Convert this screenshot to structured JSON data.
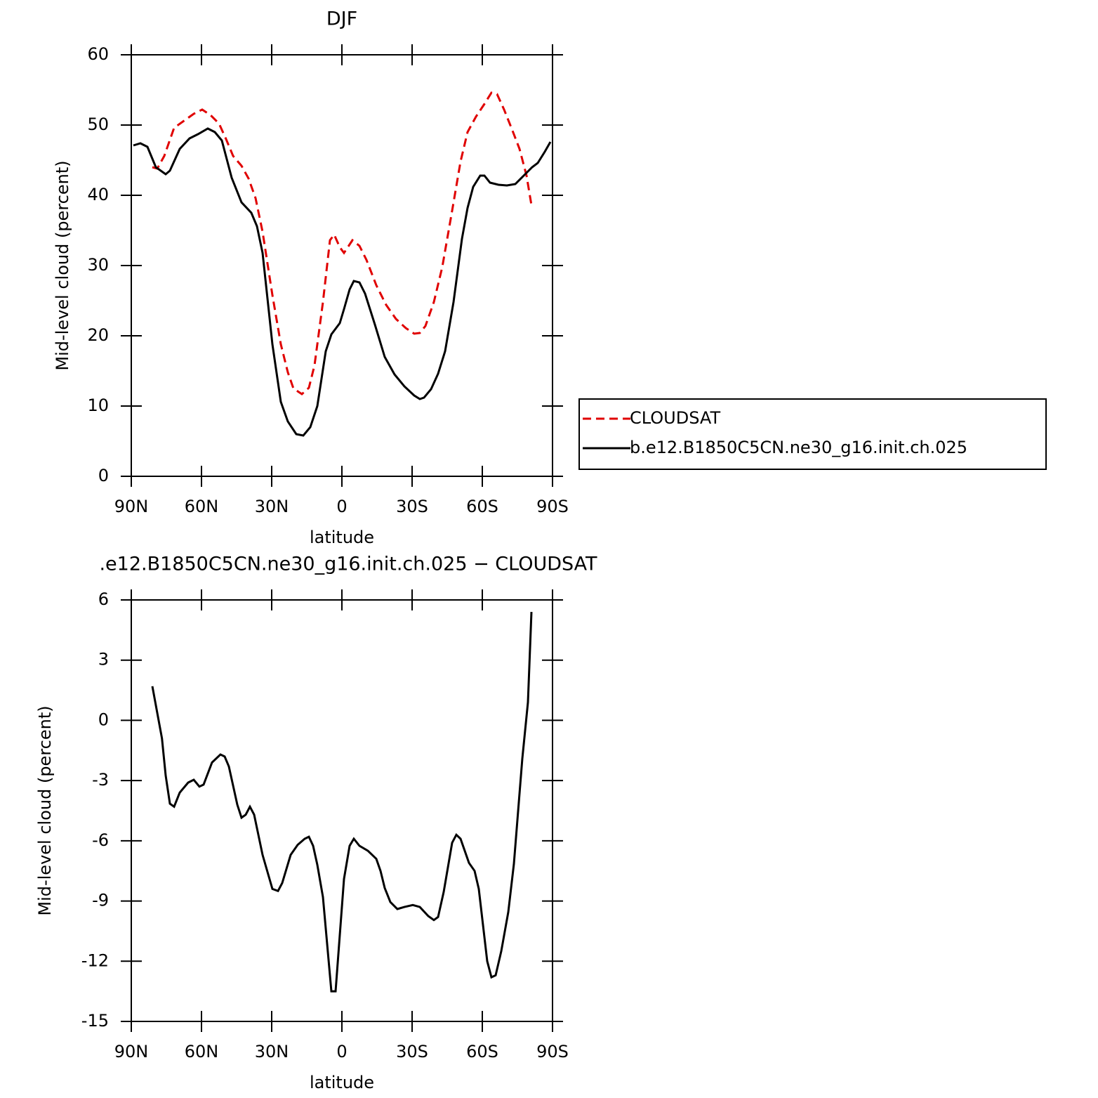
{
  "chart_data": [
    {
      "type": "line",
      "title": "DJF",
      "xlabel": "latitude",
      "ylabel": "Mid-level cloud (percent)",
      "xlim": [
        90,
        -90
      ],
      "xticks": [
        {
          "value": 90,
          "label": "90N"
        },
        {
          "value": 60,
          "label": "60N"
        },
        {
          "value": 30,
          "label": "30N"
        },
        0,
        {
          "value": -30,
          "label": "30S"
        },
        {
          "value": -60,
          "label": "60S"
        },
        {
          "value": -90,
          "label": "90S"
        }
      ],
      "ylim": [
        0,
        60
      ],
      "yticks": [
        0,
        10,
        20,
        30,
        40,
        50,
        60
      ],
      "legend": "right",
      "series": [
        {
          "name": "CLOUDSAT",
          "color": "#e00000",
          "dashed": true,
          "x": [
            81,
            78.9,
            75.9,
            71.7,
            67.5,
            63.3,
            59.7,
            56.1,
            52.5,
            49.5,
            46.5,
            42.9,
            39.9,
            36.9,
            33.9,
            29.7,
            26.1,
            23.1,
            20.7,
            17.1,
            14.1,
            11.7,
            8.1,
            5.1,
            3.3,
            0.9,
            -0.9,
            -4.5,
            -7.5,
            -10.5,
            -14.7,
            -18.9,
            -23.1,
            -27.3,
            -30.9,
            -33.3,
            -35.7,
            -39.3,
            -42.9,
            -47.1,
            -50.7,
            -53.7,
            -57.3,
            -60.9,
            -63.9,
            -66.3,
            -69.3,
            -72.9,
            -75.9,
            -78.9,
            -81
          ],
          "values": [
            44,
            43.8,
            45.6,
            49.6,
            50.6,
            51.6,
            52.2,
            51.4,
            50.2,
            48,
            45.6,
            44.2,
            42.4,
            39.6,
            34.8,
            25.8,
            18.8,
            14.8,
            12.5,
            11.7,
            12.6,
            15.8,
            24.8,
            33.6,
            34.4,
            32.6,
            31.8,
            33.6,
            32.8,
            30.8,
            27.2,
            24.4,
            22.4,
            21.1,
            20.3,
            20.4,
            21.4,
            24.8,
            29.8,
            37.8,
            44.8,
            49,
            51.2,
            53,
            54.6,
            54.4,
            52.2,
            49.2,
            46.6,
            42.8,
            38.6
          ]
        },
        {
          "name": "b.e12.B1850C5CN.ne30_g16.init.ch.025",
          "color": "#000000",
          "dashed": false,
          "x": [
            89.1,
            86.1,
            83.1,
            79.5,
            75.3,
            73.5,
            69.3,
            65.1,
            61.5,
            57.3,
            54.3,
            51.3,
            47.1,
            42.9,
            38.7,
            36.3,
            33.9,
            29.7,
            26.1,
            23.1,
            19.5,
            16.5,
            13.5,
            10.5,
            6.9,
            4.5,
            0.9,
            -0.9,
            -3.3,
            -5.1,
            -7.5,
            -9.9,
            -14.1,
            -18.3,
            -22.5,
            -26.7,
            -30.9,
            -33.3,
            -35.1,
            -38.1,
            -41.1,
            -44.1,
            -47.7,
            -51.3,
            -53.7,
            -56.1,
            -59.1,
            -60.9,
            -63.3,
            -66.9,
            -70.5,
            -74.1,
            -77.7,
            -81.3,
            -83.7,
            -86.7,
            -89.1
          ],
          "values": [
            47.1,
            47.4,
            46.9,
            44,
            43,
            43.5,
            46.6,
            48.1,
            48.7,
            49.5,
            49,
            47.8,
            42.5,
            39,
            37.5,
            35.6,
            31.8,
            18.8,
            10.6,
            7.8,
            6,
            5.8,
            7,
            10,
            17.8,
            20.2,
            21.8,
            23.8,
            26.6,
            27.8,
            27.6,
            26,
            21.6,
            17,
            14.5,
            12.8,
            11.5,
            11,
            11.2,
            12.4,
            14.6,
            17.8,
            24.8,
            33.8,
            38.2,
            41.2,
            42.8,
            42.8,
            41.8,
            41.5,
            41.4,
            41.6,
            42.8,
            44,
            44.6,
            46.2,
            47.6
          ]
        }
      ]
    },
    {
      "type": "line",
      "title": ".e12.B1850C5CN.ne30_g16.init.ch.025 − CLOUDSAT",
      "xlabel": "latitude",
      "ylabel": "Mid-level cloud (percent)",
      "xlim": [
        90,
        -90
      ],
      "xticks": [
        {
          "value": 90,
          "label": "90N"
        },
        {
          "value": 60,
          "label": "60N"
        },
        {
          "value": 30,
          "label": "30N"
        },
        0,
        {
          "value": -30,
          "label": "30S"
        },
        {
          "value": -60,
          "label": "60S"
        },
        {
          "value": -90,
          "label": "90S"
        }
      ],
      "ylim": [
        -15,
        6
      ],
      "yticks": [
        -15,
        -12,
        -9,
        -6,
        -3,
        0,
        3,
        6
      ],
      "series": [
        {
          "color": "#000000",
          "dashed": false,
          "x": [
            81,
            76.9,
            75.3,
            73.5,
            71.7,
            69.3,
            65.7,
            63.3,
            60.9,
            59.1,
            55.5,
            51.9,
            50.1,
            48.3,
            44.7,
            42.9,
            41.1,
            39.3,
            37.5,
            33.9,
            29.7,
            27.3,
            25.5,
            21.9,
            18.9,
            15.9,
            14.1,
            12.3,
            10.5,
            8.1,
            4.5,
            2.7,
            -0.9,
            -3.3,
            -5.1,
            -7.5,
            -11.1,
            -14.7,
            -16.5,
            -18.3,
            -20.7,
            -23.7,
            -26.7,
            -30.3,
            -33.3,
            -36.9,
            -39.3,
            -41.1,
            -43.5,
            -47.1,
            -48.9,
            -50.7,
            -54.3,
            -56.7,
            -58.5,
            -62.1,
            -63.9,
            -65.7,
            -68.1,
            -71.1,
            -73.5,
            -77.1,
            -79.5,
            -81
          ],
          "values": [
            1.7,
            -0.9,
            -2.75,
            -4.15,
            -4.3,
            -3.6,
            -3.1,
            -2.96,
            -3.3,
            -3.2,
            -2.1,
            -1.7,
            -1.8,
            -2.3,
            -4.2,
            -4.85,
            -4.7,
            -4.3,
            -4.7,
            -6.7,
            -8.4,
            -8.5,
            -8.1,
            -6.7,
            -6.2,
            -5.9,
            -5.8,
            -6.25,
            -7.2,
            -8.8,
            -13.5,
            -13.5,
            -7.9,
            -6.25,
            -5.9,
            -6.25,
            -6.5,
            -6.9,
            -7.5,
            -8.35,
            -9.05,
            -9.4,
            -9.3,
            -9.2,
            -9.3,
            -9.75,
            -9.95,
            -9.8,
            -8.55,
            -6.1,
            -5.7,
            -5.9,
            -7.1,
            -7.5,
            -8.4,
            -12,
            -12.8,
            -12.7,
            -11.5,
            -9.55,
            -7.15,
            -1.9,
            0.9,
            5.4
          ]
        }
      ]
    }
  ]
}
